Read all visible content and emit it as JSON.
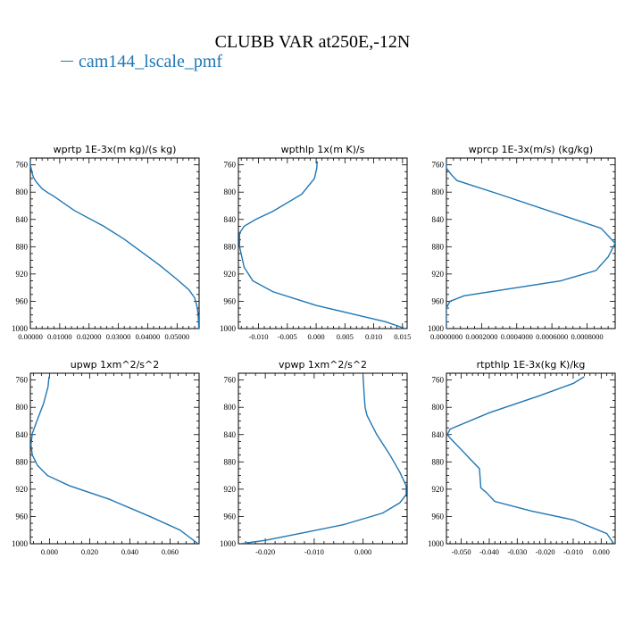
{
  "title": "CLUBB VAR at250E,-12N",
  "legend": [
    {
      "name": "cam144_lscale_pmf",
      "color": "#1f77b4"
    }
  ],
  "chart_data": [
    {
      "type": "line",
      "title": "wprtp   1E-3x(m kg)/(s kg)",
      "ylim": [
        1000,
        750
      ],
      "xlim": [
        0,
        0.0575
      ],
      "xticks": [
        0.0,
        0.01,
        0.02,
        0.03,
        0.04,
        0.05
      ],
      "xtick_labels": [
        "0.00000",
        "0.01000",
        "0.02000",
        "0.03000",
        "0.04000",
        "0.05000"
      ],
      "yticks": [
        760,
        800,
        840,
        880,
        920,
        960,
        1000
      ],
      "series": [
        {
          "color": "#1f77b4",
          "x": [
            0.0,
            0.0,
            0.0005,
            0.001,
            0.002,
            0.004,
            0.006,
            0.008,
            0.015,
            0.025,
            0.032,
            0.038,
            0.044,
            0.05,
            0.054,
            0.056,
            0.0568,
            0.0572,
            0.0574
          ],
          "y": [
            755,
            760,
            770,
            778,
            785,
            795,
            801,
            806,
            827,
            850,
            869,
            888,
            907,
            928,
            943,
            955,
            968,
            980,
            1000
          ]
        }
      ]
    },
    {
      "type": "line",
      "title": "wpthlp   1x(m K)/s",
      "ylim": [
        1000,
        750
      ],
      "xlim": [
        -0.0135,
        0.0158
      ],
      "xticks": [
        -0.01,
        -0.005,
        0.0,
        0.005,
        0.01,
        0.015
      ],
      "xtick_labels": [
        "-0.010",
        "-0.005",
        "0.000",
        "0.005",
        "0.010",
        "0.015"
      ],
      "yticks": [
        760,
        800,
        840,
        880,
        920,
        960,
        1000
      ],
      "series": [
        {
          "color": "#1f77b4",
          "x": [
            0.0002,
            0.0001,
            -0.0003,
            -0.0025,
            -0.0075,
            -0.0105,
            -0.0125,
            -0.0133,
            -0.0133,
            -0.0125,
            -0.011,
            -0.0075,
            -0.003,
            0.0,
            0.006,
            0.012,
            0.0155
          ],
          "y": [
            755,
            765,
            780,
            803,
            828,
            840,
            850,
            860,
            880,
            910,
            930,
            946,
            958,
            966,
            978,
            990,
            1000
          ]
        }
      ]
    },
    {
      "type": "line",
      "title": "wprcp   1E-3x(m/s) (kg/kg)",
      "ylim": [
        1000,
        750
      ],
      "xlim": [
        0,
        0.00096
      ],
      "xticks": [
        0.0,
        0.0002,
        0.0004,
        0.0006,
        0.0008
      ],
      "xtick_labels": [
        "0.0000000",
        "0.0002000",
        "0.0004000",
        "0.0006000",
        "0.0008000"
      ],
      "yticks": [
        760,
        800,
        840,
        880,
        920,
        960,
        1000
      ],
      "series": [
        {
          "color": "#1f77b4",
          "x": [
            0.0,
            0.0,
            3e-05,
            6e-05,
            0.0003,
            0.00088,
            0.00096,
            0.00092,
            0.00085,
            0.00065,
            0.0001,
            2e-05,
            0.0,
            0.0
          ],
          "y": [
            755,
            765,
            775,
            783,
            803,
            853,
            875,
            895,
            915,
            930,
            952,
            960,
            970,
            1000
          ]
        }
      ]
    },
    {
      "type": "line",
      "title": "upwp   1xm^2/s^2",
      "ylim": [
        1000,
        750
      ],
      "xlim": [
        -0.0095,
        0.0745
      ],
      "xticks": [
        0.0,
        0.02,
        0.04,
        0.06
      ],
      "xtick_labels": [
        "0.000",
        "0.020",
        "0.040",
        "0.060"
      ],
      "yticks": [
        760,
        800,
        840,
        880,
        920,
        960,
        1000
      ],
      "series": [
        {
          "color": "#1f77b4",
          "x": [
            -0.0002,
            -0.0007,
            -0.003,
            -0.006,
            -0.0085,
            -0.0092,
            -0.0085,
            -0.006,
            -0.001,
            0.01,
            0.03,
            0.05,
            0.065,
            0.074
          ],
          "y": [
            755,
            770,
            795,
            818,
            838,
            855,
            870,
            885,
            900,
            915,
            935,
            960,
            980,
            1000
          ]
        }
      ]
    },
    {
      "type": "line",
      "title": "vpwp   1xm^2/s^2",
      "ylim": [
        1000,
        750
      ],
      "xlim": [
        -0.0255,
        0.009
      ],
      "xticks": [
        -0.02,
        -0.01,
        0.0
      ],
      "xtick_labels": [
        "-0.020",
        "-0.010",
        "0.000"
      ],
      "yticks": [
        760,
        800,
        840,
        880,
        920,
        960,
        1000
      ],
      "series": [
        {
          "color": "#1f77b4",
          "x": [
            0.0,
            0.0002,
            0.0004,
            0.0008,
            0.0028,
            0.0055,
            0.0075,
            0.0088,
            0.0088,
            0.0075,
            0.004,
            -0.004,
            -0.013,
            -0.02,
            -0.025
          ],
          "y": [
            755,
            780,
            800,
            812,
            840,
            870,
            895,
            915,
            928,
            940,
            955,
            972,
            985,
            995,
            1000
          ]
        }
      ]
    },
    {
      "type": "line",
      "title": "rtpthlp   1E-3x(kg K)/kg",
      "ylim": [
        1000,
        750
      ],
      "xlim": [
        -0.0553,
        0.005
      ],
      "xticks": [
        -0.05,
        -0.04,
        -0.03,
        -0.02,
        -0.01,
        0.0
      ],
      "xtick_labels": [
        "-0.050",
        "-0.040",
        "-0.030",
        "-0.020",
        "-0.010",
        "0.000"
      ],
      "yticks": [
        760,
        800,
        840,
        880,
        920,
        960,
        1000
      ],
      "series": [
        {
          "color": "#1f77b4",
          "x": [
            -0.006,
            -0.01,
            -0.022,
            -0.04,
            -0.054,
            -0.055,
            -0.054,
            -0.05,
            -0.047,
            -0.0435,
            -0.043,
            -0.041,
            -0.038,
            -0.025,
            -0.01,
            0.002,
            0.0045
          ],
          "y": [
            755,
            765,
            783,
            808,
            832,
            840,
            845,
            862,
            875,
            890,
            918,
            925,
            938,
            952,
            965,
            985,
            1000
          ]
        }
      ]
    }
  ]
}
